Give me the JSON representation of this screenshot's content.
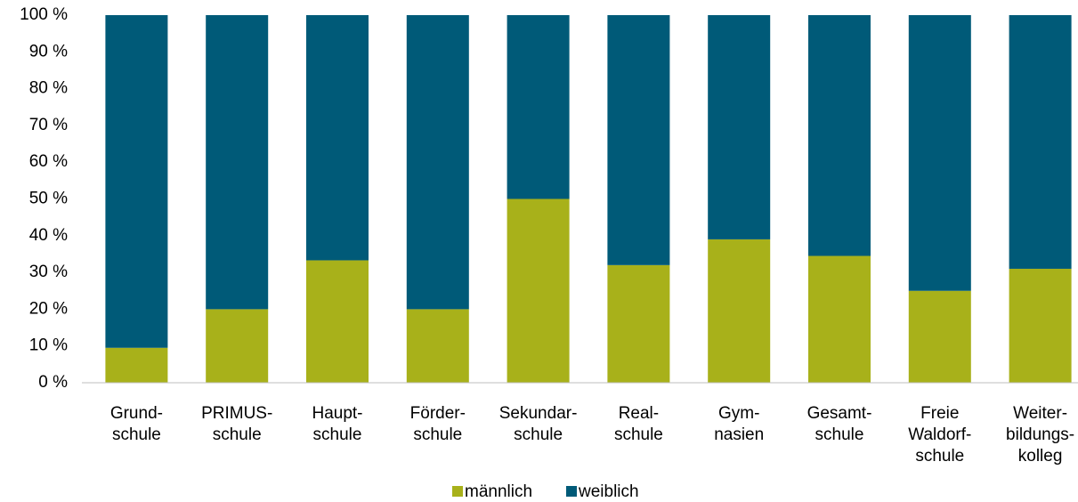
{
  "chart_data": {
    "type": "stacked_bar",
    "categories": [
      [
        "Grund-",
        "schule"
      ],
      [
        "PRIMUS-",
        "schule"
      ],
      [
        "Haupt-",
        "schule"
      ],
      [
        "Förder-",
        "schule"
      ],
      [
        "Sekundar-",
        "schule"
      ],
      [
        "Real-",
        "schule"
      ],
      [
        "Gym-",
        "nasien"
      ],
      [
        "Gesamt-",
        "schule"
      ],
      [
        "Freie",
        "Waldorf-",
        "schule"
      ],
      [
        "Weiter-",
        "bildungs-",
        "kolleg"
      ]
    ],
    "series": [
      {
        "name": "männlich",
        "color": "#a8b11a",
        "values": [
          9.5,
          20,
          33.3,
          20,
          50,
          32,
          39,
          34.5,
          25,
          31
        ]
      },
      {
        "name": "weiblich",
        "color": "#005a78",
        "values": [
          90.5,
          80,
          66.7,
          80,
          50,
          68,
          61,
          65.5,
          75,
          69
        ]
      }
    ],
    "ylim": [
      0,
      100
    ],
    "yticks": [
      {
        "value": 0,
        "label": "0 %"
      },
      {
        "value": 10,
        "label": "10 %"
      },
      {
        "value": 20,
        "label": "20 %"
      },
      {
        "value": 30,
        "label": "30 %"
      },
      {
        "value": 40,
        "label": "40 %"
      },
      {
        "value": 50,
        "label": "50 %"
      },
      {
        "value": 60,
        "label": "60 %"
      },
      {
        "value": 70,
        "label": "70 %"
      },
      {
        "value": 80,
        "label": "80 %"
      },
      {
        "value": 90,
        "label": "90 %"
      },
      {
        "value": 100,
        "label": "100 %"
      }
    ],
    "grid": false,
    "legend": "bottom"
  }
}
